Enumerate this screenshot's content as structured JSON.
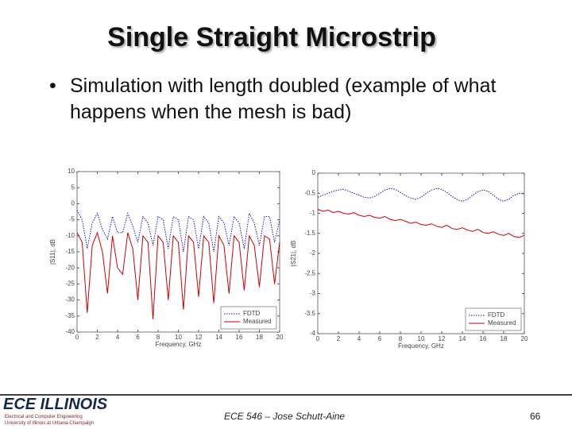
{
  "slide": {
    "title": "Single Straight Microstrip",
    "bullet": "Simulation with length doubled (example of what happens when the mesh is bad)",
    "footer": {
      "logo": "ECE ILLINOIS",
      "logo_line1": "Electrical and Computer Engineering",
      "logo_line2": "University of Illinois at Urbana-Champaign",
      "course": "ECE 546 – Jose Schutt-Aine",
      "page": "66"
    }
  },
  "chart_data": [
    {
      "type": "line",
      "xlabel": "Frequency, GHz",
      "ylabel": "|S11|, dB",
      "x": [
        0,
        0.5,
        1,
        1.5,
        2,
        2.5,
        3,
        3.5,
        4,
        4.5,
        5,
        5.5,
        6,
        6.5,
        7,
        7.5,
        8,
        8.5,
        9,
        9.5,
        10,
        10.5,
        11,
        11.5,
        12,
        12.5,
        13,
        13.5,
        14,
        14.5,
        15,
        15.5,
        16,
        16.5,
        17,
        17.5,
        18,
        18.5,
        19,
        19.5,
        20
      ],
      "series": [
        {
          "name": "FDTD",
          "color": "#1010c0",
          "linestyle": "dotted",
          "values": [
            -2,
            -5,
            -14,
            -6,
            -3,
            -8,
            -11,
            -4,
            -9,
            -9,
            -3,
            -7,
            -12,
            -4,
            -6,
            -13,
            -4,
            -5,
            -14,
            -4,
            -5,
            -15,
            -4,
            -5,
            -14,
            -4,
            -6,
            -15,
            -4,
            -6,
            -13,
            -4,
            -6,
            -14,
            -3,
            -6,
            -13,
            -4,
            -4,
            -12,
            -5
          ]
        },
        {
          "name": "Measured",
          "color": "#cc0000",
          "linestyle": "solid",
          "values": [
            -9,
            -12,
            -34,
            -13,
            -9,
            -15,
            -28,
            -10,
            -20,
            -22,
            -9,
            -14,
            -30,
            -10,
            -12,
            -36,
            -10,
            -12,
            -30,
            -10,
            -12,
            -33,
            -10,
            -12,
            -29,
            -10,
            -12,
            -31,
            -10,
            -13,
            -28,
            -10,
            -12,
            -27,
            -10,
            -13,
            -26,
            -10,
            -11,
            -25,
            -12
          ]
        }
      ],
      "xlim": [
        0,
        20
      ],
      "xticks": [
        0,
        2,
        4,
        6,
        8,
        10,
        12,
        14,
        16,
        18,
        20
      ],
      "ylim": [
        -40,
        10
      ],
      "yticks": [
        10,
        5,
        0,
        -5,
        -10,
        -15,
        -20,
        -25,
        -30,
        -35,
        -40
      ],
      "legend": "lower right"
    },
    {
      "type": "line",
      "xlabel": "Frequency, GHz",
      "ylabel": "|S21|, dB",
      "x": [
        0,
        0.5,
        1,
        1.5,
        2,
        2.5,
        3,
        3.5,
        4,
        4.5,
        5,
        5.5,
        6,
        6.5,
        7,
        7.5,
        8,
        8.5,
        9,
        9.5,
        10,
        10.5,
        11,
        11.5,
        12,
        12.5,
        13,
        13.5,
        14,
        14.5,
        15,
        15.5,
        16,
        16.5,
        17,
        17.5,
        18,
        18.5,
        19,
        19.5,
        20
      ],
      "series": [
        {
          "name": "FDTD",
          "color": "#1010c0",
          "linestyle": "dotted",
          "values": [
            -0.6,
            -0.55,
            -0.5,
            -0.45,
            -0.42,
            -0.4,
            -0.45,
            -0.5,
            -0.55,
            -0.6,
            -0.62,
            -0.58,
            -0.5,
            -0.42,
            -0.38,
            -0.4,
            -0.48,
            -0.56,
            -0.62,
            -0.65,
            -0.6,
            -0.5,
            -0.42,
            -0.38,
            -0.4,
            -0.48,
            -0.58,
            -0.66,
            -0.7,
            -0.65,
            -0.55,
            -0.46,
            -0.42,
            -0.45,
            -0.55,
            -0.65,
            -0.7,
            -0.65,
            -0.55,
            -0.5,
            -0.52
          ]
        },
        {
          "name": "Measured",
          "color": "#cc0000",
          "linestyle": "solid",
          "values": [
            -0.9,
            -0.95,
            -0.92,
            -0.98,
            -0.95,
            -1.0,
            -1.02,
            -0.98,
            -1.05,
            -1.08,
            -1.05,
            -1.1,
            -1.12,
            -1.08,
            -1.15,
            -1.18,
            -1.15,
            -1.2,
            -1.25,
            -1.22,
            -1.28,
            -1.3,
            -1.26,
            -1.32,
            -1.35,
            -1.3,
            -1.38,
            -1.4,
            -1.36,
            -1.42,
            -1.45,
            -1.4,
            -1.48,
            -1.5,
            -1.46,
            -1.52,
            -1.55,
            -1.5,
            -1.58,
            -1.6,
            -1.55
          ]
        }
      ],
      "xlim": [
        0,
        20
      ],
      "xticks": [
        0,
        2,
        4,
        6,
        8,
        10,
        12,
        14,
        16,
        18,
        20
      ],
      "ylim": [
        -4,
        0
      ],
      "yticks": [
        0,
        -0.5,
        -1,
        -1.5,
        -2,
        -2.5,
        -3,
        -3.5,
        -4
      ],
      "legend": "lower right"
    }
  ]
}
